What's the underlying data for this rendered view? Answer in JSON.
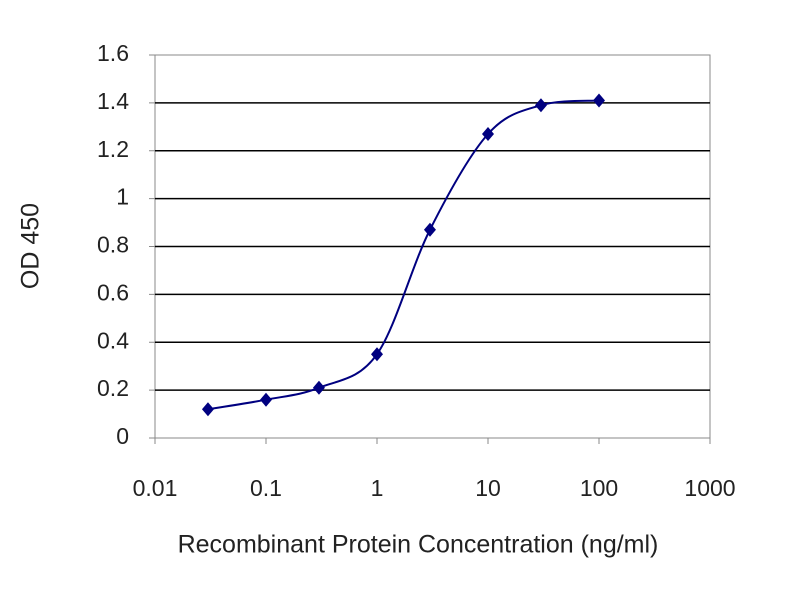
{
  "chart_data": {
    "type": "line",
    "x_label": "Recombinant Protein Concentration (ng/ml)",
    "y_label": "OD 450",
    "x": [
      0.03,
      0.1,
      0.3,
      1,
      3,
      10,
      30,
      100
    ],
    "series": [
      {
        "color": "#000080",
        "values": [
          0.12,
          0.16,
          0.21,
          0.35,
          0.87,
          1.27,
          1.39,
          1.41
        ]
      }
    ],
    "xscale": "log",
    "xlim": [
      0.01,
      1000
    ],
    "xticks": [
      0.01,
      0.1,
      1,
      10,
      100,
      1000
    ],
    "ylim": [
      0,
      1.6
    ],
    "yticks": [
      0,
      0.2,
      0.4,
      0.6,
      0.8,
      1,
      1.2,
      1.4,
      1.6
    ],
    "grid": true
  }
}
